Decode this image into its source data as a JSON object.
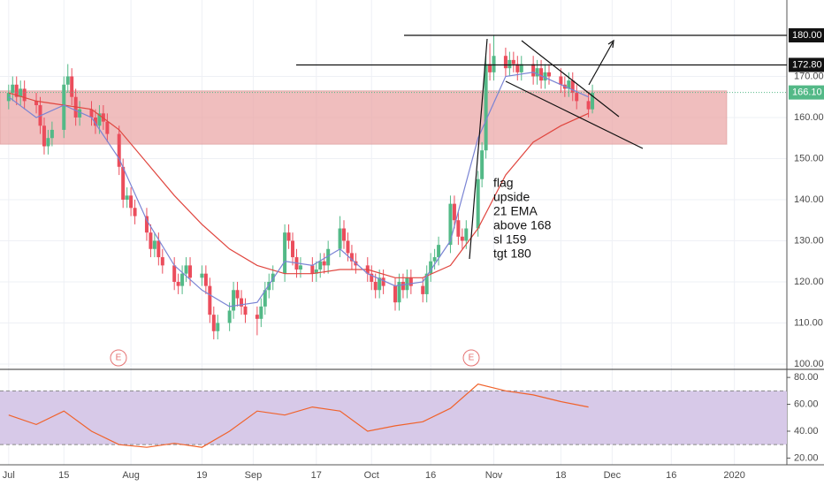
{
  "chart_data": [
    {
      "type": "candlestick",
      "x": [
        0,
        1,
        2,
        3,
        4,
        7,
        8,
        9,
        10,
        11,
        14,
        15,
        16,
        17,
        18,
        21,
        22,
        23,
        24,
        25,
        28,
        29,
        30,
        31,
        32,
        35,
        36,
        37,
        38,
        39,
        42,
        43,
        44,
        45,
        46,
        49,
        50,
        51,
        52,
        53,
        56,
        57,
        58,
        59,
        60,
        63,
        64,
        65,
        66,
        67,
        70,
        71,
        72,
        73,
        74,
        77,
        78,
        79,
        80,
        81,
        84,
        85,
        86,
        87,
        88,
        91,
        92,
        93,
        94,
        95,
        98,
        99,
        100,
        101,
        102,
        105,
        106,
        107,
        108,
        109,
        112,
        113,
        114,
        115,
        116,
        119,
        120,
        121,
        122,
        123,
        126,
        127,
        128,
        129,
        130,
        133,
        134,
        135,
        136,
        137,
        140,
        141,
        142,
        143,
        144,
        147,
        148
      ],
      "open": [
        164,
        166,
        168,
        165,
        167,
        164,
        163,
        158,
        153,
        155,
        157,
        168,
        170,
        165,
        160,
        162,
        160,
        158,
        161,
        159,
        156,
        148,
        140,
        141,
        138,
        136,
        132,
        128,
        130,
        126,
        124,
        120,
        119,
        122,
        124,
        121,
        122,
        119,
        112,
        108,
        110,
        113,
        118,
        116,
        114,
        112,
        111,
        114,
        118,
        120,
        122,
        132,
        130,
        126,
        123,
        124,
        122,
        123,
        125,
        124,
        128,
        133,
        130,
        127,
        125,
        124,
        122,
        120,
        118,
        121,
        119,
        115,
        120,
        118,
        121,
        119,
        117,
        122,
        125,
        126,
        129,
        139,
        135,
        131,
        130,
        133,
        145,
        152,
        173,
        171,
        175,
        172,
        174,
        173,
        171,
        173,
        170,
        172,
        169,
        171,
        170,
        168,
        167,
        169,
        166,
        164,
        162
      ],
      "high": [
        168,
        170,
        170,
        169,
        169,
        166,
        165,
        160,
        157,
        159,
        170,
        173,
        172,
        167,
        164,
        164,
        162,
        163,
        163,
        161,
        158,
        150,
        143,
        143,
        140,
        138,
        134,
        132,
        132,
        128,
        126,
        122,
        124,
        126,
        126,
        124,
        124,
        121,
        114,
        112,
        115,
        120,
        120,
        118,
        116,
        114,
        116,
        120,
        122,
        124,
        134,
        134,
        132,
        128,
        126,
        126,
        125,
        127,
        127,
        130,
        136,
        135,
        132,
        129,
        127,
        126,
        124,
        122,
        123,
        123,
        121,
        122,
        122,
        123,
        123,
        121,
        124,
        127,
        128,
        131,
        141,
        141,
        137,
        133,
        135,
        147,
        154,
        175,
        178,
        180,
        177,
        176,
        176,
        175,
        175,
        175,
        174,
        174,
        173,
        173,
        172,
        170,
        171,
        171,
        168,
        166,
        168
      ],
      "low": [
        162,
        164,
        163,
        163,
        162,
        161,
        156,
        151,
        151,
        153,
        155,
        166,
        163,
        158,
        158,
        158,
        156,
        156,
        157,
        154,
        146,
        138,
        138,
        136,
        134,
        130,
        126,
        126,
        124,
        122,
        118,
        117,
        117,
        120,
        119,
        119,
        117,
        110,
        106,
        106,
        108,
        111,
        114,
        112,
        110,
        107,
        109,
        112,
        116,
        118,
        120,
        128,
        124,
        121,
        121,
        120,
        120,
        121,
        122,
        122,
        126,
        128,
        125,
        123,
        122,
        120,
        118,
        116,
        116,
        117,
        113,
        113,
        116,
        116,
        117,
        115,
        115,
        120,
        123,
        124,
        127,
        133,
        129,
        128,
        128,
        131,
        143,
        150,
        169,
        169,
        170,
        170,
        171,
        169,
        169,
        168,
        168,
        167,
        167,
        168,
        166,
        165,
        165,
        164,
        162,
        160,
        161
      ],
      "close": [
        166,
        168,
        165,
        167,
        164,
        163,
        158,
        153,
        155,
        157,
        168,
        170,
        165,
        160,
        162,
        160,
        158,
        161,
        159,
        156,
        148,
        140,
        141,
        138,
        136,
        132,
        128,
        130,
        126,
        124,
        120,
        119,
        122,
        124,
        121,
        122,
        119,
        112,
        108,
        110,
        113,
        118,
        116,
        114,
        112,
        111,
        114,
        118,
        120,
        122,
        132,
        130,
        126,
        123,
        124,
        122,
        123,
        125,
        124,
        128,
        133,
        130,
        127,
        125,
        124,
        122,
        120,
        118,
        121,
        119,
        115,
        120,
        118,
        121,
        119,
        117,
        122,
        125,
        126,
        129,
        139,
        135,
        131,
        130,
        133,
        145,
        152,
        173,
        171,
        175,
        172,
        174,
        173,
        171,
        173,
        170,
        172,
        169,
        171,
        170,
        168,
        167,
        169,
        166,
        164,
        162,
        166
      ],
      "up_color": "#53b987",
      "down_color": "#eb4d5c",
      "overlays": [
        {
          "color": "#e0463f",
          "x": [
            0,
            7,
            14,
            21,
            28,
            35,
            42,
            49,
            56,
            63,
            70,
            77,
            84,
            91,
            98,
            105,
            112,
            119,
            126,
            133,
            140,
            147
          ],
          "values": [
            166,
            164,
            163,
            162,
            157,
            149,
            141,
            134,
            128,
            124,
            122,
            122,
            123,
            123,
            121,
            121,
            124,
            133,
            146,
            154,
            158,
            161
          ]
        },
        {
          "color": "#7a84d4",
          "x": [
            0,
            7,
            14,
            21,
            28,
            35,
            42,
            49,
            56,
            63,
            70,
            77,
            84,
            91,
            98,
            105,
            112,
            119,
            126,
            133,
            140,
            147
          ],
          "values": [
            165,
            160,
            163,
            160,
            150,
            135,
            124,
            118,
            114,
            115,
            125,
            124,
            128,
            122,
            119,
            120,
            130,
            155,
            170,
            171,
            168,
            165
          ]
        }
      ],
      "zone": [
        153.5,
        166.5
      ],
      "zone_color": "#e9a3a3",
      "hlines": [
        {
          "value": 180,
          "label": "180.00"
        },
        {
          "value": 172.8,
          "label": "172.80"
        }
      ],
      "last_price": {
        "value": 166.1,
        "label": "166.10"
      },
      "earnings": [
        "E",
        "E"
      ],
      "note": [
        "flag",
        "upside",
        "21 EMA",
        "above 168",
        "sl 159",
        "tgt 180"
      ],
      "xlim": [
        -2.2,
        197.3
      ],
      "xticks": [
        {
          "value": 0,
          "label": "Jul"
        },
        {
          "value": 14,
          "label": "15"
        },
        {
          "value": 31,
          "label": "Aug"
        },
        {
          "value": 49,
          "label": "19"
        },
        {
          "value": 62,
          "label": "Sep"
        },
        {
          "value": 78,
          "label": "17"
        },
        {
          "value": 92,
          "label": "Oct"
        },
        {
          "value": 107,
          "label": "16"
        },
        {
          "value": 123,
          "label": "Nov"
        },
        {
          "value": 140,
          "label": "18"
        },
        {
          "value": 153,
          "label": "Dec"
        },
        {
          "value": 168,
          "label": "16"
        },
        {
          "value": 184,
          "label": "2020"
        }
      ],
      "ylim": [
        98.7,
        188.6
      ],
      "yticks": [
        {
          "value": 100,
          "label": "100.00"
        },
        {
          "value": 110,
          "label": "110.00"
        },
        {
          "value": 120,
          "label": "120.00"
        },
        {
          "value": 130,
          "label": "130.00"
        },
        {
          "value": 140,
          "label": "140.00"
        },
        {
          "value": 150,
          "label": "150.00"
        },
        {
          "value": 160,
          "label": "160.00"
        },
        {
          "value": 170,
          "label": "170.00"
        }
      ],
      "grid": true
    },
    {
      "type": "line",
      "x": [
        0,
        7,
        14,
        21,
        28,
        35,
        42,
        49,
        56,
        63,
        70,
        77,
        84,
        91,
        98,
        105,
        112,
        119,
        126,
        133,
        140,
        147
      ],
      "values": [
        52,
        45,
        55,
        40,
        30,
        28,
        31,
        28,
        40,
        55,
        52,
        58,
        55,
        40,
        44,
        47,
        57,
        75,
        70,
        67,
        62,
        58
      ],
      "color": "#f0622b",
      "band": [
        30,
        70
      ],
      "band_color": "#d7c9e8",
      "ylim": [
        15,
        86
      ],
      "yticks": [
        {
          "value": 20,
          "label": "20.00"
        },
        {
          "value": 40,
          "label": "40.00"
        },
        {
          "value": 60,
          "label": "60.00"
        },
        {
          "value": 80,
          "label": "80.00"
        }
      ]
    }
  ]
}
